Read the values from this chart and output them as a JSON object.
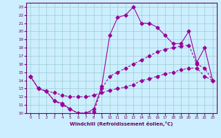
{
  "xlabel": "Windchill (Refroidissement éolien,°C)",
  "xlim": [
    -0.5,
    23.5
  ],
  "ylim": [
    10,
    23.5
  ],
  "xticks": [
    0,
    1,
    2,
    3,
    4,
    5,
    6,
    7,
    8,
    9,
    10,
    11,
    12,
    13,
    14,
    15,
    16,
    17,
    18,
    19,
    20,
    21,
    22,
    23
  ],
  "yticks": [
    10,
    11,
    12,
    13,
    14,
    15,
    16,
    17,
    18,
    19,
    20,
    21,
    22,
    23
  ],
  "bg_color": "#cceeff",
  "line_color": "#990099",
  "grid_color": "#99cccc",
  "curve1_x": [
    0,
    1,
    2,
    3,
    4,
    5,
    6,
    7,
    8,
    9,
    10,
    11,
    12,
    13,
    14,
    15,
    16,
    17,
    18,
    19,
    20,
    21,
    22,
    23
  ],
  "curve1_y": [
    14.5,
    13.0,
    12.7,
    11.5,
    11.2,
    10.5,
    10.0,
    10.0,
    10.5,
    13.3,
    19.5,
    21.7,
    22.0,
    23.0,
    21.0,
    21.0,
    20.5,
    19.5,
    18.5,
    18.5,
    20.0,
    16.2,
    18.0,
    14.0
  ],
  "curve2_x": [
    0,
    1,
    2,
    3,
    4,
    5,
    6,
    7,
    8,
    9,
    10,
    11,
    12,
    13,
    14,
    15,
    16,
    17,
    18,
    19,
    20,
    21,
    22,
    23
  ],
  "curve2_y": [
    14.5,
    13.0,
    12.7,
    11.5,
    11.0,
    10.5,
    10.0,
    10.0,
    10.2,
    13.0,
    14.5,
    15.0,
    15.5,
    16.0,
    16.5,
    17.0,
    17.5,
    17.8,
    18.0,
    18.2,
    18.3,
    16.0,
    15.5,
    14.0
  ],
  "curve3_x": [
    0,
    1,
    2,
    3,
    4,
    5,
    6,
    7,
    8,
    9,
    10,
    11,
    12,
    13,
    14,
    15,
    16,
    17,
    18,
    19,
    20,
    21,
    22,
    23
  ],
  "curve3_y": [
    14.5,
    13.0,
    12.7,
    12.5,
    12.2,
    12.0,
    12.0,
    12.0,
    12.2,
    12.5,
    12.8,
    13.0,
    13.2,
    13.5,
    14.0,
    14.2,
    14.5,
    14.8,
    15.0,
    15.3,
    15.5,
    15.5,
    14.5,
    14.0
  ]
}
